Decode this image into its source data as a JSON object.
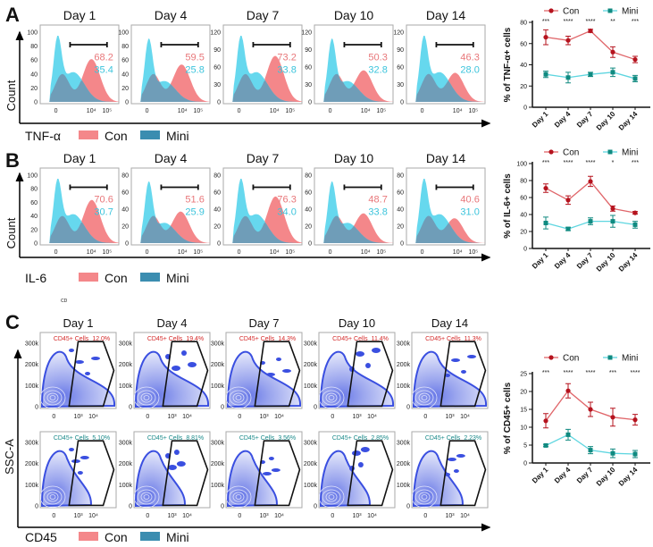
{
  "days": [
    "Day 1",
    "Day 4",
    "Day 7",
    "Day 10",
    "Day 14"
  ],
  "colors": {
    "con_fill": "#f4878a",
    "mini_fill": "#66d8ee",
    "overlap": "#6f9db8",
    "con_text": "#e8777a",
    "mini_text": "#3cc4dc",
    "con_line": "#e0666a",
    "con_marker": "#b5131e",
    "mini_line": "#5fd6e0",
    "mini_marker": "#108a80",
    "density": "#3a4fe0",
    "c_con_text": "#d42a2a",
    "c_mini_text": "#1a8a8a"
  },
  "panelA": {
    "letter": "A",
    "axis_y": "Count",
    "marker_label": "TNF-α",
    "legend_con": "Con",
    "legend_mini": "Mini",
    "x_ticks": [
      "0",
      "10⁴",
      "10⁵"
    ],
    "y_ticks": [
      [
        "0",
        "20",
        "40",
        "60",
        "80",
        "100"
      ],
      [
        "0",
        "20",
        "40",
        "60",
        "80",
        "100"
      ],
      [
        "0",
        "30",
        "60",
        "90",
        "120"
      ],
      [
        "0",
        "30",
        "60",
        "90",
        "120"
      ],
      [
        "0",
        "30",
        "60",
        "90",
        "120"
      ]
    ],
    "con": [
      "68.2",
      "59.5",
      "73.2",
      "50.3",
      "46.3"
    ],
    "mini": [
      "35.4",
      "25.8",
      "33.8",
      "32.8",
      "28.0"
    ]
  },
  "panelB": {
    "letter": "B",
    "axis_y": "Count",
    "marker_label": "IL-6",
    "legend_con": "Con",
    "legend_mini": "Mini",
    "stray_label": "CD",
    "x_ticks": [
      "0",
      "10⁴",
      "10⁵"
    ],
    "y_ticks": [
      [
        "0",
        "20",
        "40",
        "60",
        "80",
        "100"
      ],
      [
        "0",
        "20",
        "40",
        "60",
        "80"
      ],
      [
        "0",
        "20",
        "40",
        "60",
        "80"
      ],
      [
        "0",
        "20",
        "40",
        "60",
        "80"
      ],
      [
        "0",
        "20",
        "40",
        "60",
        "80"
      ]
    ],
    "con": [
      "70.6",
      "51.6",
      "76.3",
      "48.7",
      "40.6"
    ],
    "mini": [
      "30.7",
      "25.9",
      "34.0",
      "33.8",
      "31.0"
    ]
  },
  "panelC": {
    "letter": "C",
    "axis_y": "SSC-A",
    "marker_label": "CD45",
    "legend_con": "Con",
    "legend_mini": "Mini",
    "x_ticks": [
      "0",
      "10³",
      "10⁴"
    ],
    "y_ticks": [
      "0",
      "100k",
      "200k",
      "300k"
    ],
    "gate_label": "CD45+ Cells",
    "con": [
      "12.0%",
      "19.4%",
      "14.3%",
      "11.4%",
      "11.3%"
    ],
    "mini": [
      "5.10%",
      "8.81%",
      "3.56%",
      "2.85%",
      "2.23%"
    ]
  },
  "chart_data": [
    {
      "type": "line",
      "title": "",
      "ylabel": "% of TNF-α+ cells",
      "categories": [
        "Day 1",
        "Day 4",
        "Day 7",
        "Day 10",
        "Day 14"
      ],
      "ylim": [
        0,
        80
      ],
      "yticks": [
        "0",
        "20",
        "40",
        "60",
        "80"
      ],
      "series": [
        {
          "name": "Con",
          "values": [
            66,
            63,
            72,
            52,
            45
          ],
          "errors": [
            7,
            4,
            1.5,
            5,
            3
          ]
        },
        {
          "name": "Mini",
          "values": [
            31,
            28,
            31,
            33,
            27
          ],
          "errors": [
            3,
            5,
            2,
            4,
            3
          ]
        }
      ],
      "significance": [
        "***",
        "****",
        "****",
        "**",
        "***"
      ],
      "legend": "top"
    },
    {
      "type": "line",
      "title": "",
      "ylabel": "% of IL-6+ cells",
      "categories": [
        "Day 1",
        "Day 4",
        "Day 7",
        "Day 10",
        "Day 14"
      ],
      "ylim": [
        0,
        100
      ],
      "yticks": [
        "0",
        "20",
        "40",
        "60",
        "80",
        "100"
      ],
      "series": [
        {
          "name": "Con",
          "values": [
            71,
            57,
            79,
            47,
            42
          ],
          "errors": [
            5,
            5,
            6,
            3,
            1.5
          ]
        },
        {
          "name": "Mini",
          "values": [
            30,
            23,
            32,
            32,
            28
          ],
          "errors": [
            7,
            2,
            4,
            7,
            4
          ]
        }
      ],
      "significance": [
        "***",
        "****",
        "****",
        "*",
        "***"
      ],
      "legend": "top"
    },
    {
      "type": "line",
      "title": "",
      "ylabel": "% of CD45+ cells",
      "categories": [
        "Day 1",
        "Day 4",
        "Day 7",
        "Day 10",
        "Day 14"
      ],
      "ylim": [
        0,
        25
      ],
      "yticks": [
        "0",
        "5",
        "10",
        "15",
        "20",
        "25"
      ],
      "series": [
        {
          "name": "Con",
          "values": [
            11.8,
            20.2,
            15,
            12.8,
            12.1
          ],
          "errors": [
            2,
            2,
            2,
            2.5,
            1.5
          ]
        },
        {
          "name": "Mini",
          "values": [
            4.9,
            7.9,
            3.6,
            2.7,
            2.5
          ],
          "errors": [
            0.3,
            1.5,
            1,
            1.2,
            1
          ]
        }
      ],
      "significance": [
        "***",
        "****",
        "****",
        "***",
        "****"
      ],
      "legend": "top"
    }
  ]
}
